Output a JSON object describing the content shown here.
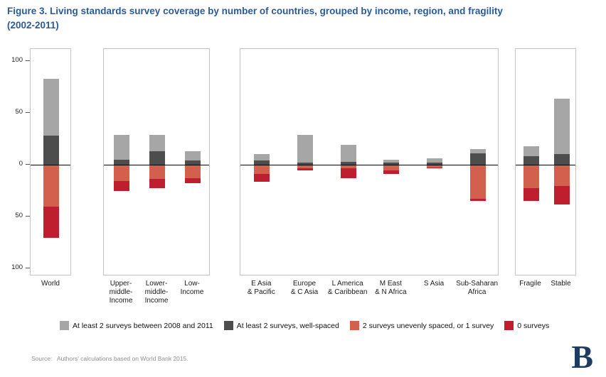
{
  "title": {
    "line1": "Figure 3. Living standards survey coverage by number of countries, grouped by income, region, and fragility",
    "line2": "(2002-2011)"
  },
  "source": "Source:   Authors' calculations based on World Bank 2015.",
  "logo": "B",
  "colors": {
    "title": "#2b5a9a",
    "recent": "#a6a6a6",
    "wellspaced": "#4d4d4d",
    "uneven": "#d2604c",
    "none": "#bf1e2e",
    "panel_border": "#c4c4c4",
    "zero_line": "#000000",
    "logo": "#1e3c5f"
  },
  "chart_data": {
    "type": "bar",
    "stacked": true,
    "diverging": true,
    "title": "Living standards survey coverage by number of countries, grouped by income, region, and fragility (2002-2011)",
    "ylabel": "",
    "xlabel": "",
    "ylim": [
      -110,
      112
    ],
    "grid": false,
    "legend_position": "bottom",
    "y_ticks": [
      {
        "value": 100,
        "label": "100"
      },
      {
        "value": 50,
        "label": "50"
      },
      {
        "value": 0,
        "label": "0"
      },
      {
        "value": -50,
        "label": "50"
      },
      {
        "value": -100,
        "label": "100"
      }
    ],
    "note": "recent and wellspaced stack upward from zero (wellspaced adjacent to zero); uneven and none stack downward from zero (uneven adjacent to zero); downward values plotted as positive counts below axis",
    "legend": [
      {
        "key": "recent",
        "label": "At least 2 surveys between 2008 and 2011",
        "color": "#a6a6a6"
      },
      {
        "key": "wellspaced",
        "label": "At least 2 surveys, well-spaced",
        "color": "#4d4d4d"
      },
      {
        "key": "uneven",
        "label": "2 surveys unevenly spaced, or 1 survey",
        "color": "#d2604c"
      },
      {
        "key": "none",
        "label": "0 surveys",
        "color": "#bf1e2e"
      }
    ],
    "panels": [
      {
        "name": "world",
        "bars": [
          {
            "label": "World",
            "recent": 55,
            "wellspaced": 28,
            "uneven": 40,
            "none": 30
          }
        ]
      },
      {
        "name": "income",
        "bars": [
          {
            "label": "Upper-\nmiddle-\nIncome",
            "recent": 24,
            "wellspaced": 5,
            "uneven": 15,
            "none": 10
          },
          {
            "label": "Lower-\nmiddle-\nIncome",
            "recent": 16,
            "wellspaced": 13,
            "uneven": 13,
            "none": 9
          },
          {
            "label": "Low-\nIncome",
            "recent": 9,
            "wellspaced": 4,
            "uneven": 12,
            "none": 5
          }
        ]
      },
      {
        "name": "region",
        "bars": [
          {
            "label": "E Asia\n& Pacific",
            "recent": 6,
            "wellspaced": 4,
            "uneven": 8,
            "none": 8
          },
          {
            "label": "Europe\n& C Asia",
            "recent": 27,
            "wellspaced": 2,
            "uneven": 3,
            "none": 2
          },
          {
            "label": "L America\n& Caribbean",
            "recent": 16,
            "wellspaced": 3,
            "uneven": 3,
            "none": 9
          },
          {
            "label": "M East\n& N Africa",
            "recent": 3,
            "wellspaced": 2,
            "uneven": 5,
            "none": 3
          },
          {
            "label": "S Asia",
            "recent": 4,
            "wellspaced": 2,
            "uneven": 2,
            "none": 1
          },
          {
            "label": "Sub-Saharan\nAfrica",
            "recent": 4,
            "wellspaced": 11,
            "uneven": 32,
            "none": 2
          }
        ]
      },
      {
        "name": "fragility",
        "bars": [
          {
            "label": "Fragile",
            "recent": 10,
            "wellspaced": 8,
            "uneven": 22,
            "none": 12
          },
          {
            "label": "Stable",
            "recent": 54,
            "wellspaced": 10,
            "uneven": 20,
            "none": 18
          }
        ]
      }
    ]
  }
}
